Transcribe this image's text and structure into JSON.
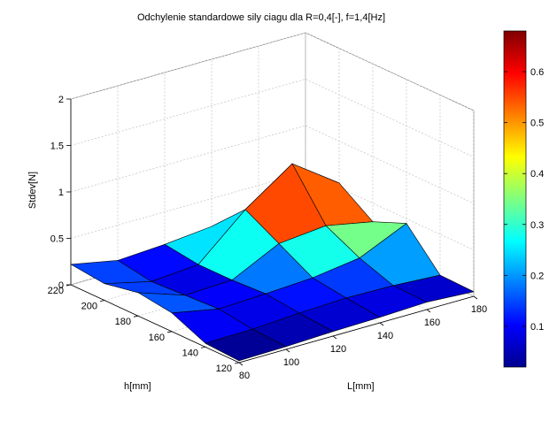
{
  "chart_data": {
    "type": "surface",
    "title": "Odchylenie standardowe sily ciagu dla R=0,4[-], f=1,4[Hz]",
    "xlabel": "L[mm]",
    "ylabel": "h[mm]",
    "zlabel": "Stdev[N]",
    "L": [
      80,
      100,
      120,
      140,
      160,
      180
    ],
    "h": [
      120,
      140,
      160,
      180,
      200,
      220
    ],
    "Z": [
      [
        0.02,
        0.03,
        0.05,
        0.06,
        0.08,
        0.05
      ],
      [
        0.04,
        0.05,
        0.08,
        0.1,
        0.09,
        0.06
      ],
      [
        0.2,
        0.1,
        0.12,
        0.15,
        0.22,
        0.45
      ],
      [
        0.25,
        0.08,
        0.1,
        0.35,
        0.4,
        0.3
      ],
      [
        0.18,
        0.06,
        0.1,
        0.55,
        0.9,
        0.55
      ],
      [
        0.22,
        0.12,
        0.15,
        0.2,
        0.25,
        0.4
      ]
    ],
    "xticks": [
      "80",
      "100",
      "120",
      "140",
      "160",
      "180"
    ],
    "yticks": [
      "120",
      "140",
      "160",
      "180",
      "200",
      "220"
    ],
    "zticks": [
      "0",
      "0.5",
      "1",
      "1.5",
      "2"
    ],
    "zlim": [
      0,
      2
    ],
    "colormap": "jet",
    "clim": [
      0.02,
      0.68
    ],
    "colorbar_ticks": [
      "0.1",
      "0.2",
      "0.3",
      "0.4",
      "0.5",
      "0.6"
    ],
    "grid": true
  }
}
